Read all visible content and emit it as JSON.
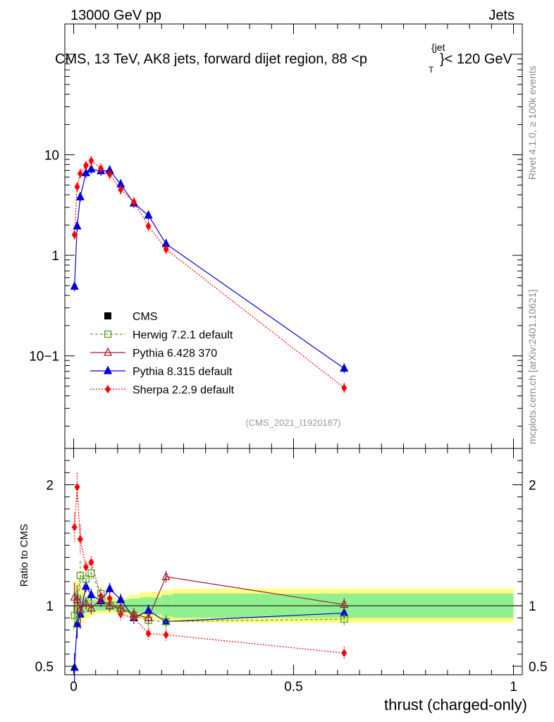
{
  "header": {
    "left": "13000 GeV pp",
    "right": "Jets",
    "title_pre": "CMS, 13 TeV, AK8 jets, forward dijet region, 88 <p",
    "title_sub": "T",
    "title_sup": "{jet",
    "title_post": "}< 120 GeV",
    "side_rivet": "Rivet 4.1.0, ≥ 100k events",
    "side_mcplots": "mcplots.cern.ch [arXiv:2401.10621]",
    "analysis": "(CMS_2021_I1920187)"
  },
  "chart_data": {
    "type": "line",
    "xlabel": "thrust (charged-only)",
    "ylabel_ratio": "Ratio to CMS",
    "xlim": [
      -0.02,
      1.02
    ],
    "ylim_main_log": [
      0.012,
      200
    ],
    "ylim_ratio": [
      0.43,
      2.3
    ],
    "x_ticks": [
      "0",
      "0.5",
      "1"
    ],
    "main_y_ticks": [
      "10",
      "1",
      "10−1"
    ],
    "ratio_y_ticks": [
      "2",
      "1",
      "0.5"
    ],
    "legend": [
      {
        "label": "CMS",
        "color": "#000000",
        "marker": "square"
      },
      {
        "label": "Herwig 7.2.1 default",
        "color": "#5a9e1c",
        "marker": "open-square",
        "dash": "4,3"
      },
      {
        "label": "Pythia 6.428 370",
        "color": "#a01c2c",
        "marker": "open-triangle",
        "dash": ""
      },
      {
        "label": "Pythia 8.315 default",
        "color": "#0000dd",
        "marker": "triangle",
        "dash": ""
      },
      {
        "label": "Sherpa 2.2.9 default",
        "color": "#ff0000",
        "marker": "diamond",
        "dash": "2,2"
      }
    ],
    "band_x": [
      0.0,
      0.0125,
      0.025,
      0.0375,
      0.05,
      0.075,
      0.1,
      0.125,
      0.15,
      0.2,
      0.225,
      1.0
    ],
    "band_stat": [
      0.12,
      0.08,
      0.06,
      0.05,
      0.04,
      0.04,
      0.05,
      0.06,
      0.07,
      0.09,
      0.1
    ],
    "band_total": [
      0.2,
      0.14,
      0.1,
      0.08,
      0.06,
      0.06,
      0.07,
      0.09,
      0.11,
      0.13,
      0.14
    ],
    "series": [
      {
        "name": "Pythia 8.315 default",
        "color": "#0000dd",
        "marker": "triangle",
        "dash": "",
        "x": [
          0.002,
          0.008,
          0.015,
          0.028,
          0.04,
          0.062,
          0.082,
          0.107,
          0.137,
          0.17,
          0.21,
          0.615
        ],
        "y": [
          0.49,
          1.95,
          3.8,
          6.6,
          7.2,
          6.9,
          7.0,
          5.1,
          3.3,
          2.5,
          1.3,
          0.075
        ],
        "ratio": [
          0.49,
          0.85,
          0.93,
          1.16,
          1.09,
          1.04,
          1.14,
          1.05,
          0.9,
          0.96,
          0.87,
          0.94
        ]
      },
      {
        "name": "Sherpa 2.2.9 default",
        "color": "#ff0000",
        "marker": "diamond",
        "dash": "2,2",
        "x": [
          0.002,
          0.008,
          0.015,
          0.028,
          0.04,
          0.062,
          0.082,
          0.107,
          0.137,
          0.17,
          0.21,
          0.615
        ],
        "y": [
          1.6,
          4.8,
          6.5,
          7.8,
          8.7,
          7.3,
          6.4,
          4.5,
          3.4,
          1.95,
          1.15,
          0.048
        ],
        "ratio": [
          1.65,
          1.98,
          1.55,
          1.32,
          1.36,
          1.08,
          1.06,
          0.93,
          0.9,
          0.77,
          0.76,
          0.61
        ]
      },
      {
        "name": "Herwig 7.2.1 default",
        "color": "#5a9e1c",
        "marker": "open-square",
        "dash": "4,3",
        "x": [
          0.002,
          0.008,
          0.015,
          0.028,
          0.04,
          0.062,
          0.082,
          0.107,
          0.137,
          0.17,
          0.21,
          0.615
        ],
        "ratio": [
          0.92,
          0.97,
          1.25,
          1.22,
          1.27,
          1.1,
          1.0,
          0.97,
          0.92,
          0.88,
          0.87,
          0.89
        ]
      },
      {
        "name": "Pythia 6.428 370",
        "color": "#a01c2c",
        "marker": "open-triangle",
        "dash": "",
        "x": [
          0.002,
          0.008,
          0.015,
          0.028,
          0.04,
          0.062,
          0.082,
          0.107,
          0.137,
          0.17,
          0.21,
          0.615
        ],
        "ratio": [
          1.07,
          1.05,
          0.97,
          1.02,
          0.98,
          1.05,
          1.0,
          0.98,
          0.93,
          0.9,
          1.24,
          1.01
        ]
      }
    ]
  }
}
